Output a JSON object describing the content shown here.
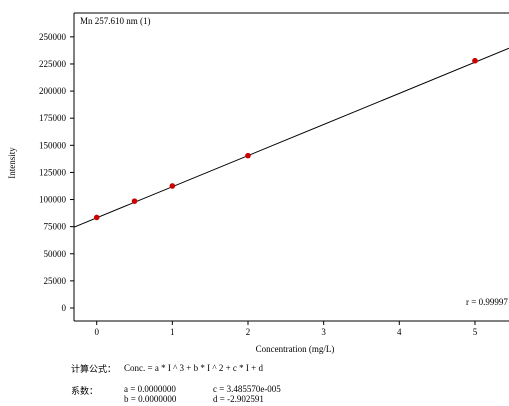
{
  "chart_data": {
    "type": "scatter",
    "title": "Mn 257.610 nm (1)",
    "xlabel": "Concentration   (mg/L)",
    "ylabel": "Intensity",
    "xlim": [
      -0.3,
      5.45
    ],
    "ylim": [
      -12000,
      272000
    ],
    "x_ticks": [
      0,
      1,
      2,
      3,
      4,
      5
    ],
    "y_ticks": [
      0,
      25000,
      50000,
      75000,
      100000,
      125000,
      150000,
      175000,
      200000,
      225000,
      250000
    ],
    "y_tick_labels": [
      "0",
      "25000",
      "50000",
      "75000",
      "100000",
      "125000",
      "150000",
      "175000",
      "200000",
      "225000",
      "250000"
    ],
    "points": [
      {
        "x": 0,
        "y": 83500
      },
      {
        "x": 0.5,
        "y": 98500
      },
      {
        "x": 1,
        "y": 112500
      },
      {
        "x": 2,
        "y": 140500
      },
      {
        "x": 5,
        "y": 228000
      }
    ],
    "fit_line": {
      "x": [
        -0.3,
        5.45
      ],
      "y": [
        74500,
        239500
      ]
    },
    "annotation": "r = 0.99997",
    "point_color": "#cc0000",
    "line_color": "#000000",
    "grid": false
  },
  "formula": {
    "label": "计算公式：",
    "text": "Conc. = a * I ^ 3 + b * I ^ 2 + c * I + d"
  },
  "coefficients": {
    "label": "系数：",
    "a": "a = 0.0000000",
    "b": "b = 0.0000000",
    "c": "c = 3.485570e-005",
    "d": "d = -2.902591"
  }
}
